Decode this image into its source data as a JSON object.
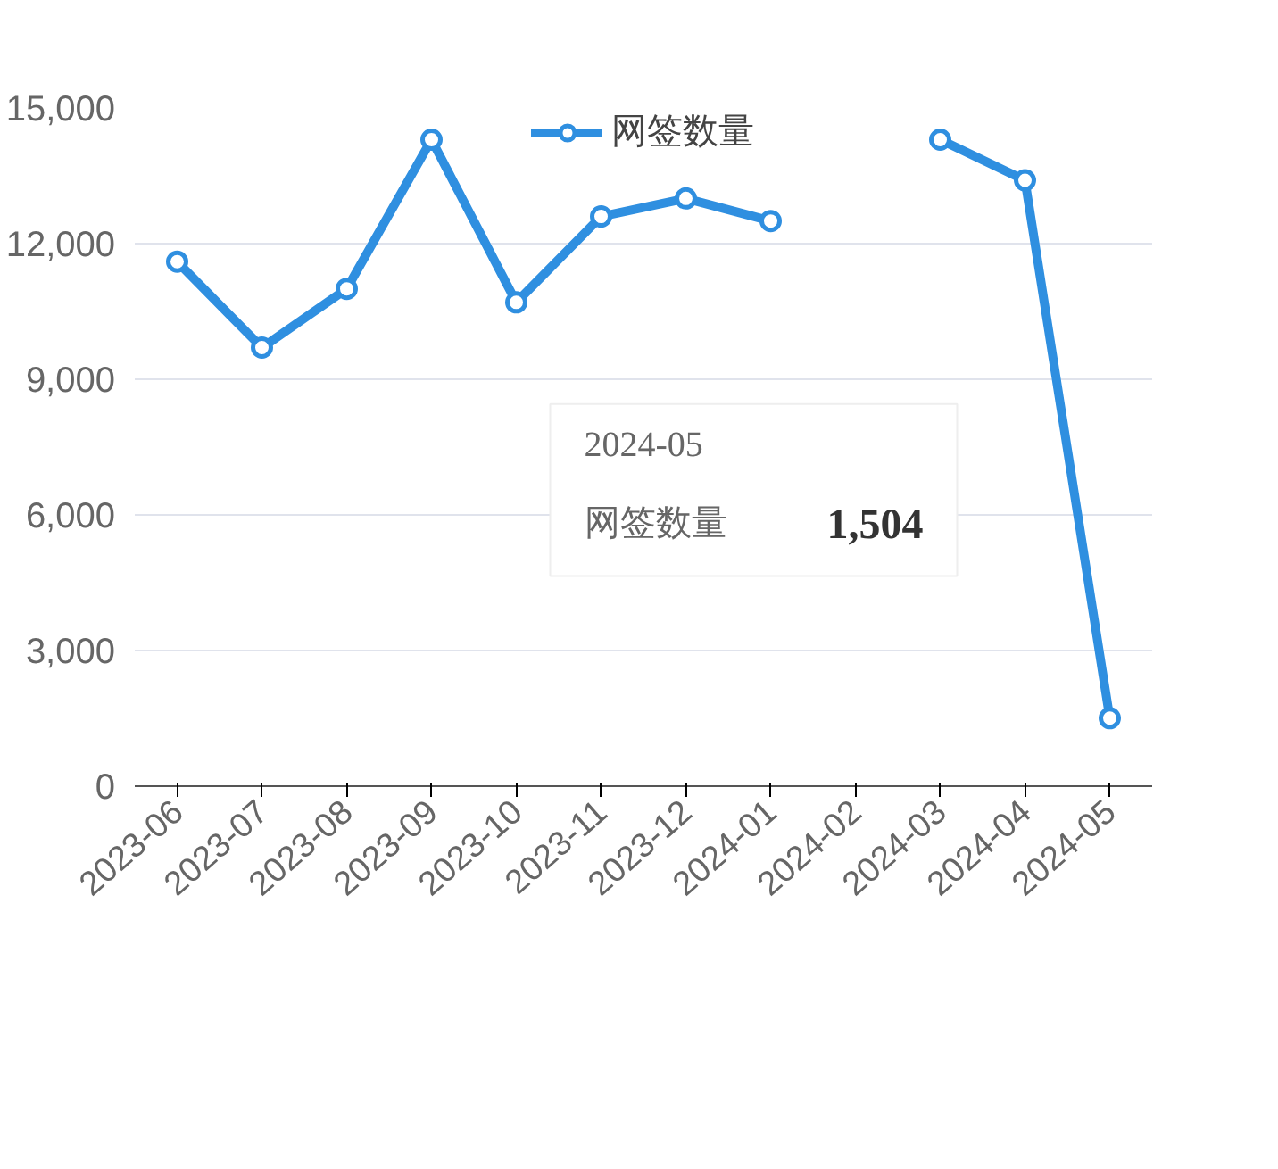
{
  "chart_data": {
    "type": "line",
    "categories": [
      "2023-06",
      "2023-07",
      "2023-08",
      "2023-09",
      "2023-10",
      "2023-11",
      "2023-12",
      "2024-01",
      "2024-02",
      "2024-03",
      "2024-04",
      "2024-05"
    ],
    "series": [
      {
        "name": "网签数量",
        "color": "#2f8fe0",
        "values": [
          11600,
          9700,
          11000,
          14300,
          10700,
          12600,
          13000,
          12500,
          null,
          14300,
          13400,
          1504
        ]
      }
    ],
    "ylim": [
      0,
      15000
    ],
    "yticks": [
      {
        "value": 0,
        "label": "0"
      },
      {
        "value": 3000,
        "label": "3,000"
      },
      {
        "value": 6000,
        "label": "6,000"
      },
      {
        "value": 9000,
        "label": "9,000"
      },
      {
        "value": 12000,
        "label": "12,000"
      },
      {
        "value": 15000,
        "label": "15,000"
      }
    ],
    "grid": "y",
    "legend": "top",
    "marker": "circle",
    "line_style": "solid",
    "annotations": [
      "2024-05",
      "网签数量",
      "1,504"
    ]
  }
}
